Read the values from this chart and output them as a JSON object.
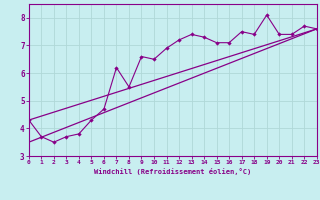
{
  "xlabel": "Windchill (Refroidissement éolien,°C)",
  "bg_color": "#c8eef0",
  "grid_color": "#b0d8d8",
  "line_color": "#880088",
  "x_data": [
    0,
    1,
    2,
    3,
    4,
    5,
    6,
    7,
    8,
    9,
    10,
    11,
    12,
    13,
    14,
    15,
    16,
    17,
    18,
    19,
    20,
    21,
    22,
    23
  ],
  "y_scatter": [
    4.3,
    3.7,
    3.5,
    3.7,
    3.8,
    4.3,
    4.7,
    6.2,
    5.5,
    6.6,
    6.5,
    6.9,
    7.2,
    7.4,
    7.3,
    7.1,
    7.1,
    7.5,
    7.4,
    8.1,
    7.4,
    7.4,
    7.7,
    7.6
  ],
  "trend1_start": 3.5,
  "trend1_end": 7.6,
  "trend2_start": 4.3,
  "trend2_end": 7.6,
  "ylim": [
    3.0,
    8.5
  ],
  "xlim": [
    0,
    23
  ],
  "yticks": [
    3,
    4,
    5,
    6,
    7,
    8
  ],
  "xticks": [
    0,
    1,
    2,
    3,
    4,
    5,
    6,
    7,
    8,
    9,
    10,
    11,
    12,
    13,
    14,
    15,
    16,
    17,
    18,
    19,
    20,
    21,
    22,
    23
  ]
}
